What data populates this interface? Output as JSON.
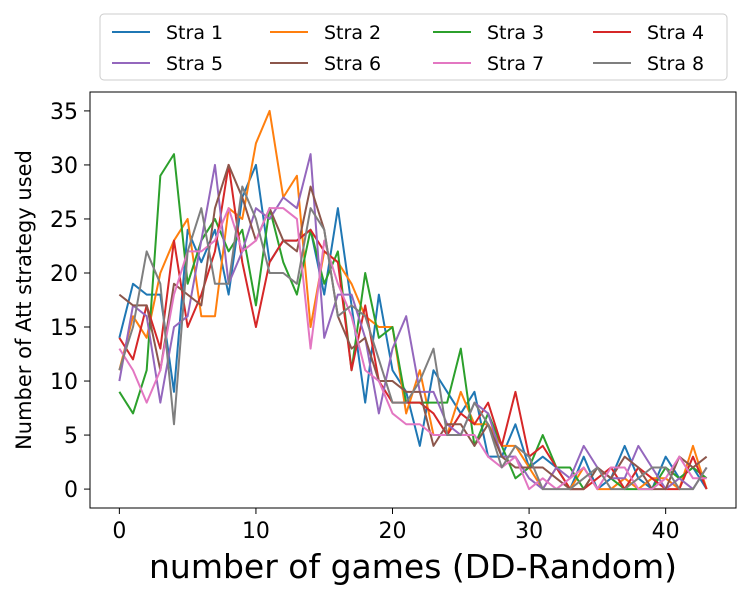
{
  "chart_data": {
    "type": "line",
    "title": "",
    "xlabel": "number of games (DD-Random)",
    "ylabel": "Number of Att strategy used",
    "xlim": [
      -2.15,
      45.15
    ],
    "ylim": [
      -1.75,
      36.75
    ],
    "xticks": [
      0,
      10,
      20,
      30,
      40
    ],
    "yticks": [
      0,
      5,
      10,
      15,
      20,
      25,
      30,
      35
    ],
    "grid": false,
    "legend_position": "top-center",
    "legend_columns": 4,
    "x": [
      0,
      1,
      2,
      3,
      4,
      5,
      6,
      7,
      8,
      9,
      10,
      11,
      12,
      13,
      14,
      15,
      16,
      17,
      18,
      19,
      20,
      21,
      22,
      23,
      24,
      25,
      26,
      27,
      28,
      29,
      30,
      31,
      32,
      33,
      34,
      35,
      36,
      37,
      38,
      39,
      40,
      41,
      42,
      43
    ],
    "series": [
      {
        "name": "Stra 1",
        "color": "#1f77b4",
        "values": [
          14,
          19,
          18,
          18,
          9,
          24,
          21,
          24,
          18,
          27,
          30,
          21,
          23,
          23,
          24,
          18,
          26,
          17,
          8,
          18,
          11,
          9,
          4,
          11,
          9,
          7,
          9,
          3,
          3,
          6,
          2,
          3,
          2,
          0,
          3,
          0,
          1,
          4,
          1,
          0,
          3,
          1,
          2,
          0
        ]
      },
      {
        "name": "Stra 2",
        "color": "#ff7f0e",
        "values": [
          11,
          16,
          14,
          20,
          23,
          25,
          16,
          16,
          26,
          25,
          32,
          35,
          27,
          29,
          15,
          22,
          21,
          19,
          16,
          15,
          15,
          7,
          11,
          5,
          5,
          9,
          6,
          6,
          4,
          4,
          2,
          0,
          2,
          0,
          2,
          0,
          0,
          1,
          0,
          1,
          1,
          0,
          4,
          0
        ]
      },
      {
        "name": "Stra 3",
        "color": "#2ca02c",
        "values": [
          9,
          7,
          11,
          29,
          31,
          19,
          23,
          25,
          22,
          24,
          17,
          26,
          21,
          18,
          24,
          19,
          22,
          11,
          20,
          14,
          15,
          8,
          8,
          8,
          8,
          13,
          4,
          7,
          4,
          1,
          2,
          5,
          2,
          2,
          0,
          2,
          1,
          0,
          0,
          0,
          2,
          1,
          2,
          1
        ]
      },
      {
        "name": "Stra 4",
        "color": "#d62728",
        "values": [
          14,
          12,
          17,
          13,
          23,
          15,
          18,
          22,
          30,
          21,
          15,
          21,
          23,
          23,
          24,
          22,
          21,
          11,
          17,
          10,
          8,
          8,
          8,
          7,
          5,
          7,
          6,
          8,
          4,
          9,
          3,
          4,
          2,
          0,
          0,
          1,
          2,
          0,
          2,
          1,
          0,
          0,
          3,
          0
        ]
      },
      {
        "name": "Stra 5",
        "color": "#9467bd",
        "values": [
          10,
          17,
          16,
          8,
          15,
          16,
          23,
          30,
          19,
          22,
          26,
          25,
          27,
          26,
          31,
          14,
          18,
          18,
          14,
          7,
          13,
          16,
          9,
          9,
          6,
          5,
          8,
          7,
          3,
          3,
          1,
          0,
          2,
          1,
          4,
          2,
          1,
          1,
          4,
          2,
          0,
          1,
          0,
          2
        ]
      },
      {
        "name": "Stra 6",
        "color": "#8c564b",
        "values": [
          18,
          17,
          17,
          11,
          19,
          18,
          17,
          26,
          30,
          27,
          23,
          26,
          23,
          22,
          28,
          24,
          16,
          13,
          14,
          10,
          10,
          9,
          9,
          4,
          6,
          6,
          4,
          6,
          3,
          2,
          2,
          2,
          1,
          0,
          0,
          2,
          1,
          3,
          2,
          0,
          0,
          3,
          2,
          3
        ]
      },
      {
        "name": "Stra 7",
        "color": "#e377c2",
        "values": [
          13,
          11,
          8,
          11,
          18,
          22,
          22,
          23,
          26,
          22,
          23,
          26,
          26,
          25,
          13,
          23,
          19,
          16,
          11,
          10,
          7,
          6,
          6,
          5,
          5,
          5,
          5,
          3,
          2,
          3,
          0,
          1,
          0,
          1,
          2,
          0,
          2,
          2,
          0,
          0,
          1,
          3,
          1,
          1
        ]
      },
      {
        "name": "Stra 8",
        "color": "#7f7f7f",
        "values": [
          11,
          15,
          22,
          19,
          6,
          22,
          26,
          19,
          19,
          28,
          25,
          20,
          20,
          19,
          26,
          24,
          16,
          17,
          16,
          12,
          8,
          8,
          10,
          13,
          5,
          5,
          8,
          6,
          2,
          4,
          3,
          0,
          0,
          0,
          1,
          2,
          0,
          0,
          1,
          2,
          2,
          0,
          0,
          2
        ]
      }
    ]
  }
}
